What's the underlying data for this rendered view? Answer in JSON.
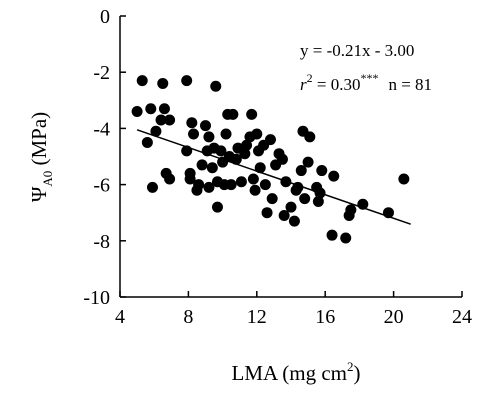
{
  "chart_data": {
    "type": "scatter",
    "title": "",
    "xlabel": {
      "main": "LMA (mg cm",
      "sup": "2",
      "close": ")"
    },
    "ylabel": {
      "psi": "Ψ",
      "sub": "A0",
      "rest": " (MPa)"
    },
    "xlim": [
      4,
      24
    ],
    "ylim": [
      -10,
      0
    ],
    "xticks": [
      4,
      8,
      12,
      16,
      20,
      24
    ],
    "yticks": [
      0,
      -2,
      -4,
      -6,
      -8,
      -10
    ],
    "grid": false,
    "legend": "none",
    "annotation": {
      "equation": "y = -0.21x - 3.00",
      "r_symbol": "r",
      "r_exp": "2",
      "r_value": " = 0.30",
      "r_stars": "***",
      "n_text": "n = 81"
    },
    "trendline": {
      "slope": -0.21,
      "intercept": -3.0,
      "x_range": [
        5.0,
        21.0
      ]
    },
    "marker_color": "#000000",
    "points": [
      [
        5.0,
        -3.4
      ],
      [
        5.3,
        -2.3
      ],
      [
        5.6,
        -4.5
      ],
      [
        5.8,
        -3.3
      ],
      [
        5.9,
        -6.1
      ],
      [
        6.1,
        -4.1
      ],
      [
        6.4,
        -3.7
      ],
      [
        6.5,
        -2.4
      ],
      [
        6.6,
        -3.3
      ],
      [
        6.7,
        -5.6
      ],
      [
        6.9,
        -5.8
      ],
      [
        6.9,
        -3.7
      ],
      [
        7.9,
        -2.3
      ],
      [
        7.9,
        -4.8
      ],
      [
        8.1,
        -5.6
      ],
      [
        8.1,
        -5.8
      ],
      [
        8.2,
        -3.8
      ],
      [
        8.3,
        -4.2
      ],
      [
        8.5,
        -6.2
      ],
      [
        8.6,
        -6.0
      ],
      [
        8.8,
        -5.3
      ],
      [
        9.0,
        -3.9
      ],
      [
        9.1,
        -4.8
      ],
      [
        9.2,
        -4.3
      ],
      [
        9.2,
        -6.1
      ],
      [
        9.4,
        -5.4
      ],
      [
        9.5,
        -4.7
      ],
      [
        9.6,
        -2.5
      ],
      [
        9.7,
        -5.9
      ],
      [
        9.7,
        -6.8
      ],
      [
        9.9,
        -4.8
      ],
      [
        10.0,
        -5.2
      ],
      [
        10.1,
        -6.0
      ],
      [
        10.2,
        -4.2
      ],
      [
        10.3,
        -3.5
      ],
      [
        10.4,
        -5.0
      ],
      [
        10.5,
        -6.0
      ],
      [
        10.6,
        -3.5
      ],
      [
        10.8,
        -5.1
      ],
      [
        10.9,
        -4.7
      ],
      [
        11.1,
        -5.9
      ],
      [
        11.3,
        -4.9
      ],
      [
        11.4,
        -4.6
      ],
      [
        11.6,
        -4.3
      ],
      [
        11.7,
        -3.5
      ],
      [
        11.8,
        -5.8
      ],
      [
        11.9,
        -6.2
      ],
      [
        12.0,
        -4.2
      ],
      [
        12.1,
        -4.8
      ],
      [
        12.2,
        -5.4
      ],
      [
        12.4,
        -4.6
      ],
      [
        12.5,
        -6.0
      ],
      [
        12.6,
        -7.0
      ],
      [
        12.8,
        -4.4
      ],
      [
        12.9,
        -6.5
      ],
      [
        13.1,
        -5.3
      ],
      [
        13.3,
        -4.9
      ],
      [
        13.5,
        -5.1
      ],
      [
        13.6,
        -7.1
      ],
      [
        13.7,
        -5.9
      ],
      [
        14.0,
        -6.8
      ],
      [
        14.2,
        -7.3
      ],
      [
        14.3,
        -6.2
      ],
      [
        14.4,
        -6.1
      ],
      [
        14.6,
        -5.5
      ],
      [
        14.7,
        -4.1
      ],
      [
        14.8,
        -6.5
      ],
      [
        15.0,
        -5.2
      ],
      [
        15.1,
        -4.3
      ],
      [
        15.5,
        -6.1
      ],
      [
        15.6,
        -6.6
      ],
      [
        15.7,
        -6.3
      ],
      [
        15.8,
        -5.5
      ],
      [
        16.4,
        -7.8
      ],
      [
        16.5,
        -5.7
      ],
      [
        17.2,
        -7.9
      ],
      [
        17.4,
        -7.1
      ],
      [
        17.5,
        -6.9
      ],
      [
        18.2,
        -6.7
      ],
      [
        19.7,
        -7.0
      ],
      [
        20.6,
        -5.8
      ]
    ]
  }
}
